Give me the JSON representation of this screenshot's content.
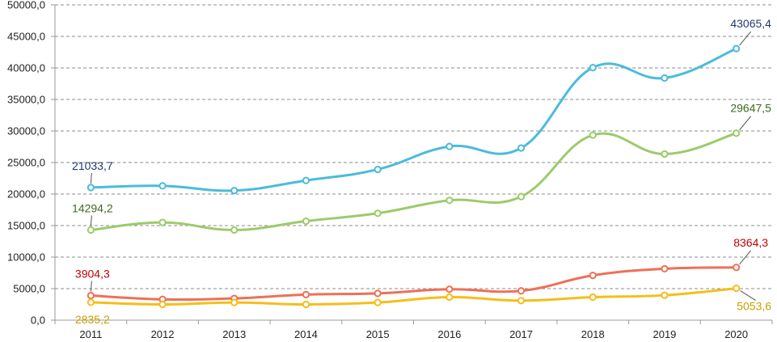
{
  "chart_data": {
    "type": "line",
    "title": "",
    "xlabel": "",
    "ylabel": "",
    "categories": [
      "2011",
      "2012",
      "2013",
      "2014",
      "2015",
      "2016",
      "2017",
      "2018",
      "2019",
      "2020"
    ],
    "ylim": [
      0,
      50000
    ],
    "ytick_values": [
      0,
      5000,
      10000,
      15000,
      20000,
      25000,
      30000,
      35000,
      40000,
      45000,
      50000
    ],
    "ytick_labels": [
      "0,0",
      "5000,0",
      "10000,0",
      "15000,0",
      "20000,0",
      "25000,0",
      "30000,0",
      "35000,0",
      "40000,0",
      "45000,0",
      "50000,0"
    ],
    "grid": true,
    "legend": "none",
    "series": [
      {
        "name": "series-blue",
        "color": "#4BBBDC",
        "label_color": "#1F3A6B",
        "values": [
          21033.7,
          21300,
          20550,
          22150,
          23900,
          27550,
          27300,
          40050,
          38400,
          43065.4
        ],
        "labels": [
          {
            "index": 0,
            "text": "21033,7",
            "position": "above"
          },
          {
            "index": 9,
            "text": "43065,4",
            "position": "above"
          }
        ]
      },
      {
        "name": "series-green",
        "color": "#9BCB6A",
        "label_color": "#3B6A1E",
        "values": [
          14294.2,
          15500,
          14300,
          15700,
          16950,
          19000,
          19600,
          29350,
          26350,
          29647.5
        ],
        "labels": [
          {
            "index": 0,
            "text": "14294,2",
            "position": "above"
          },
          {
            "index": 9,
            "text": "29647,5",
            "position": "above"
          }
        ]
      },
      {
        "name": "series-red",
        "color": "#EE7057",
        "label_color": "#C00000",
        "values": [
          3904.3,
          3300,
          3450,
          4050,
          4250,
          4900,
          4650,
          7100,
          8150,
          8364.3
        ],
        "labels": [
          {
            "index": 0,
            "text": "3904,3",
            "position": "above"
          },
          {
            "index": 9,
            "text": "8364,3",
            "position": "above"
          }
        ]
      },
      {
        "name": "series-yellow",
        "color": "#F5BE1A",
        "label_color": "#C9A000",
        "values": [
          2835.2,
          2500,
          2800,
          2500,
          2800,
          3650,
          3100,
          3650,
          3950,
          5053.6
        ],
        "labels": [
          {
            "index": 0,
            "text": "2835,2",
            "position": "below"
          },
          {
            "index": 9,
            "text": "5053,6",
            "position": "below"
          }
        ]
      }
    ]
  }
}
